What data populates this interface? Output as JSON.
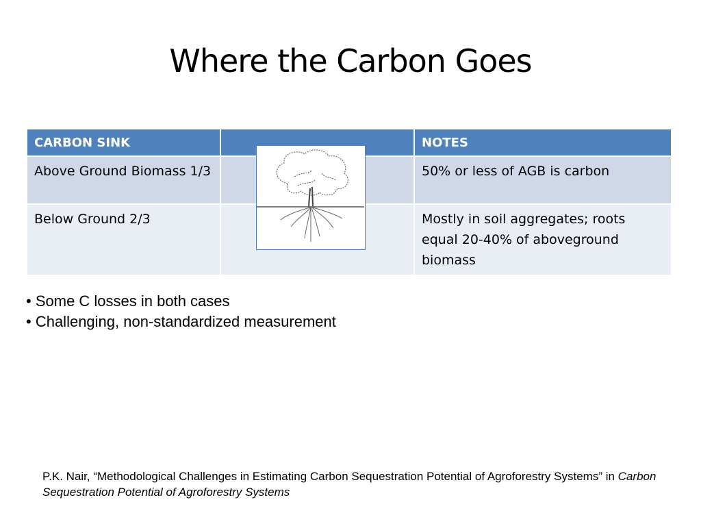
{
  "title": "Where the Carbon Goes",
  "table": {
    "headers": [
      "CARBON SINK",
      "",
      "NOTES"
    ],
    "rows": [
      {
        "sink": "Above Ground Biomass 1/3",
        "notes": "50% or less of AGB is carbon"
      },
      {
        "sink": "Below Ground  2/3",
        "notes": "Mostly in soil aggregates; roots equal 20-40% of aboveground biomass"
      }
    ],
    "header_color": "#4f81bd"
  },
  "image": {
    "icon": "tree-with-roots-illustration"
  },
  "bullets": [
    "Some C losses in both cases",
    "Challenging, non-standardized measurement"
  ],
  "citation": {
    "text": "P.K. Nair, “Methodological Challenges in Estimating Carbon Sequestration Potential of Agroforestry Systems” in ",
    "italic": "Carbon Sequestration Potential of Agroforestry Systems"
  }
}
